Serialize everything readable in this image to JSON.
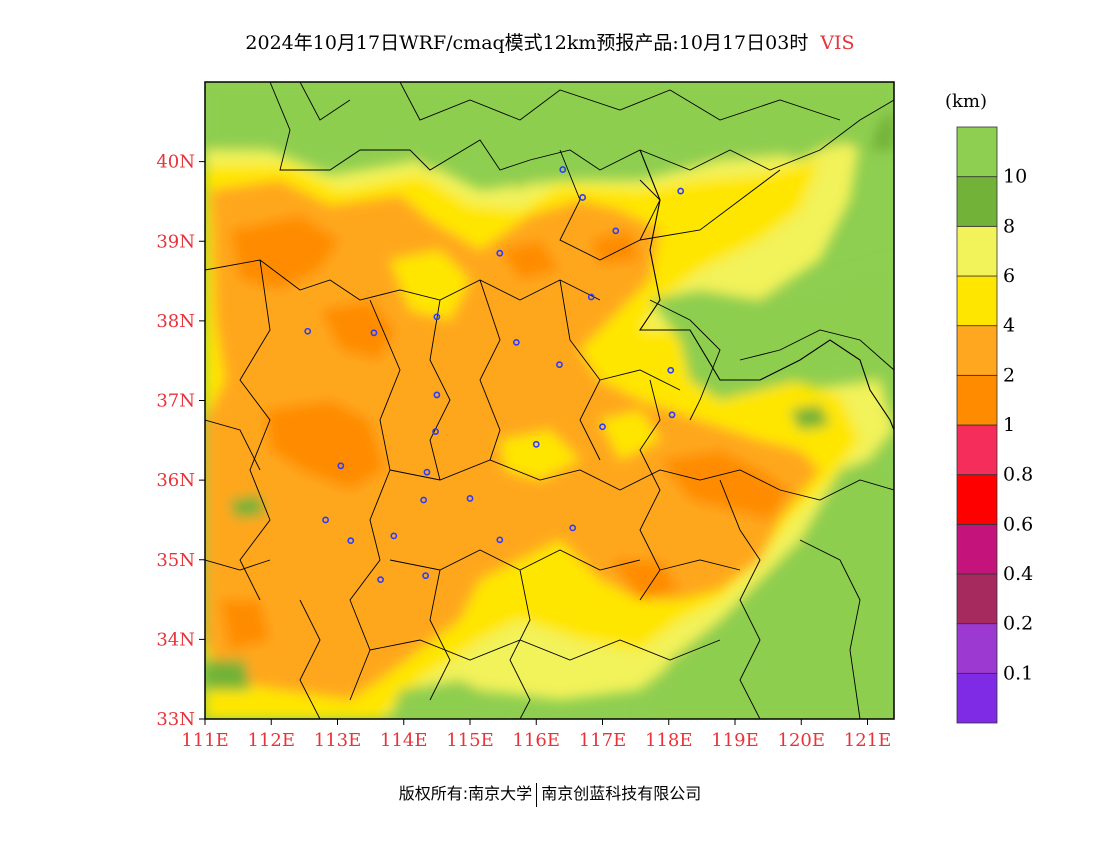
{
  "title": {
    "main": "2024年10月17日WRF/cmaq模式12km预报产品:10月17日03时",
    "variable": "VIS"
  },
  "map": {
    "lat_labels": [
      "33N",
      "34N",
      "35N",
      "36N",
      "37N",
      "38N",
      "39N",
      "40N"
    ],
    "lon_labels": [
      "111E",
      "112E",
      "113E",
      "114E",
      "115E",
      "116E",
      "117E",
      "118E",
      "119E",
      "120E",
      "121E"
    ],
    "lon_range": [
      111,
      121.4
    ],
    "lat_range": [
      33,
      41
    ],
    "axis_color": "#e8333a"
  },
  "legend": {
    "unit": "(km)",
    "colors": [
      "#7f2be6",
      "#9b39d0",
      "#a62a5e",
      "#c4147c",
      "#ff0000",
      "#f52d5a",
      "#ff8c00",
      "#ffa71f",
      "#ffe600",
      "#f2f25a",
      "#72b239",
      "#8ece50"
    ],
    "labels": [
      "0.1",
      "0.2",
      "0.4",
      "0.6",
      "0.8",
      "1",
      "2",
      "4",
      "6",
      "8",
      "10"
    ]
  },
  "stations": [
    [
      112.55,
      37.87
    ],
    [
      113.55,
      37.85
    ],
    [
      114.5,
      38.05
    ],
    [
      115.45,
      38.85
    ],
    [
      116.4,
      39.9
    ],
    [
      116.7,
      39.55
    ],
    [
      117.2,
      39.13
    ],
    [
      118.18,
      39.63
    ],
    [
      116.83,
      38.3
    ],
    [
      115.7,
      37.73
    ],
    [
      116.35,
      37.45
    ],
    [
      114.5,
      37.07
    ],
    [
      114.48,
      36.61
    ],
    [
      113.05,
      36.18
    ],
    [
      114.35,
      36.1
    ],
    [
      114.3,
      35.75
    ],
    [
      115.0,
      35.77
    ],
    [
      116.0,
      36.45
    ],
    [
      112.82,
      35.5
    ],
    [
      113.2,
      35.24
    ],
    [
      113.85,
      35.3
    ],
    [
      115.45,
      35.25
    ],
    [
      116.55,
      35.4
    ],
    [
      114.33,
      34.8
    ],
    [
      113.65,
      34.75
    ],
    [
      117.0,
      36.67
    ],
    [
      118.05,
      36.82
    ],
    [
      118.03,
      37.38
    ]
  ],
  "footer": {
    "left": "版权所有:南京大学",
    "right": "南京创蓝科技有限公司"
  }
}
